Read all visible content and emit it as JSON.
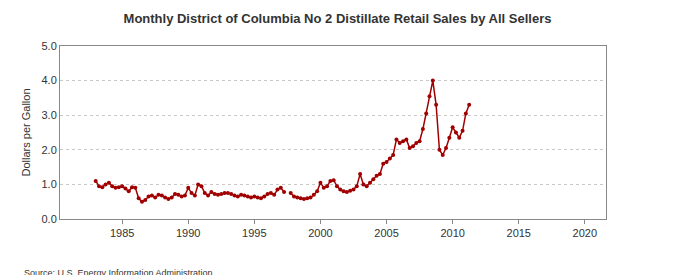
{
  "chart_data": {
    "type": "line",
    "title": "Monthly District of Columbia No 2 Distillate Retail Sales by All Sellers",
    "y_label": "Dollars per Gallon",
    "source": "Source: U.S. Energy Information Administration",
    "color": "#a00000",
    "marker": "circle",
    "grid": true,
    "x": [
      1983.0,
      1983.25,
      1983.5,
      1983.75,
      1984.0,
      1984.25,
      1984.5,
      1984.75,
      1985.0,
      1985.25,
      1985.5,
      1985.75,
      1986.0,
      1986.25,
      1986.5,
      1986.75,
      1987.0,
      1987.25,
      1987.5,
      1987.75,
      1988.0,
      1988.25,
      1988.5,
      1988.75,
      1989.0,
      1989.25,
      1989.5,
      1989.75,
      1990.0,
      1990.25,
      1990.5,
      1990.75,
      1991.0,
      1991.25,
      1991.5,
      1991.75,
      1992.0,
      1992.25,
      1992.5,
      1992.75,
      1993.0,
      1993.25,
      1993.5,
      1993.75,
      1994.0,
      1994.25,
      1994.5,
      1994.75,
      1995.0,
      1995.25,
      1995.5,
      1995.75,
      1996.0,
      1996.25,
      1996.5,
      1996.75,
      1997.0,
      1997.25,
      1997.5,
      1997.75,
      1998.0,
      1998.25,
      1998.5,
      1998.75,
      1999.0,
      1999.25,
      1999.5,
      1999.75,
      2000.0,
      2000.25,
      2000.5,
      2000.75,
      2001.0,
      2001.25,
      2001.5,
      2001.75,
      2002.0,
      2002.25,
      2002.5,
      2002.75,
      2003.0,
      2003.25,
      2003.5,
      2003.75,
      2004.0,
      2004.25,
      2004.5,
      2004.75,
      2005.0,
      2005.25,
      2005.5,
      2005.75,
      2006.0,
      2006.25,
      2006.5,
      2006.75,
      2007.0,
      2007.25,
      2007.5,
      2007.75,
      2008.0,
      2008.25,
      2008.5,
      2008.75,
      2009.0,
      2009.25,
      2009.5,
      2009.75,
      2010.0,
      2010.25,
      2010.5,
      2010.75,
      2011.0,
      2011.25
    ],
    "values": [
      1.1,
      0.95,
      0.92,
      1.0,
      1.05,
      0.95,
      0.9,
      0.92,
      0.95,
      0.88,
      0.8,
      0.92,
      0.9,
      0.6,
      0.5,
      0.55,
      0.65,
      0.68,
      0.62,
      0.7,
      0.68,
      0.62,
      0.58,
      0.62,
      0.72,
      0.7,
      0.65,
      0.68,
      0.9,
      0.75,
      0.68,
      1.0,
      0.95,
      0.75,
      0.68,
      0.78,
      0.72,
      0.7,
      0.72,
      0.75,
      0.75,
      0.72,
      0.68,
      0.65,
      0.7,
      0.68,
      0.65,
      0.62,
      0.65,
      0.62,
      0.6,
      0.65,
      0.72,
      0.75,
      0.7,
      0.85,
      0.9,
      0.78,
      null,
      0.75,
      0.65,
      0.62,
      0.6,
      0.58,
      0.6,
      0.62,
      0.7,
      0.8,
      1.05,
      0.9,
      0.95,
      1.1,
      1.12,
      0.95,
      0.85,
      0.8,
      0.78,
      0.82,
      0.85,
      0.95,
      1.3,
      1.0,
      0.95,
      1.05,
      1.15,
      1.25,
      1.3,
      1.6,
      1.65,
      1.75,
      1.85,
      2.3,
      2.2,
      2.25,
      2.3,
      2.05,
      2.1,
      2.2,
      2.25,
      2.6,
      3.05,
      3.55,
      4.0,
      3.3,
      2.0,
      1.85,
      2.05,
      2.35,
      2.65,
      2.5,
      2.35,
      2.55,
      3.05,
      3.3
    ],
    "xlim": [
      1980.3,
      2021.6
    ],
    "xticks": [
      1985,
      1990,
      1995,
      2000,
      2005,
      2010,
      2015,
      2020
    ],
    "ylim": [
      0,
      5
    ],
    "yticks": [
      {
        "value": 0,
        "label": "0.0"
      },
      {
        "value": 1,
        "label": "1.0"
      },
      {
        "value": 2,
        "label": "2.0"
      },
      {
        "value": 3,
        "label": "3.0"
      },
      {
        "value": 4,
        "label": "4.0"
      },
      {
        "value": 5,
        "label": "5.0"
      }
    ]
  }
}
